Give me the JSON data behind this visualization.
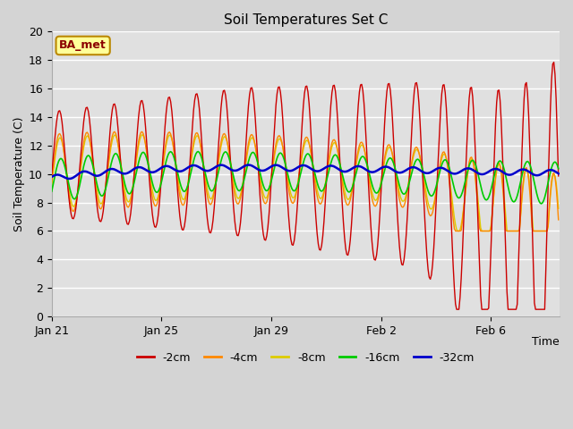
{
  "title": "Soil Temperatures Set C",
  "xlabel": "Time",
  "ylabel": "Soil Temperature (C)",
  "ylim": [
    0,
    20
  ],
  "yticks": [
    0,
    2,
    4,
    6,
    8,
    10,
    12,
    14,
    16,
    18,
    20
  ],
  "xtick_labels": [
    "Jan 21",
    "Jan 25",
    "Jan 29",
    "Feb 2",
    "Feb 6"
  ],
  "xtick_days": [
    0,
    4,
    8,
    12,
    16
  ],
  "colors": {
    "-2cm": "#cc0000",
    "-4cm": "#ff8800",
    "-8cm": "#ddcc00",
    "-16cm": "#00cc00",
    "-32cm": "#0000cc"
  },
  "legend_labels": [
    "-2cm",
    "-4cm",
    "-8cm",
    "-16cm",
    "-32cm"
  ],
  "annotation_text": "BA_met",
  "annotation_box_color": "#ffff99",
  "annotation_box_border": "#bb8800",
  "fig_bg_color": "#d4d4d4",
  "plot_bg_color": "#e0e0e0",
  "title_fontsize": 11,
  "label_fontsize": 9,
  "n_days": 18.5,
  "dt": 0.041666666666666664
}
